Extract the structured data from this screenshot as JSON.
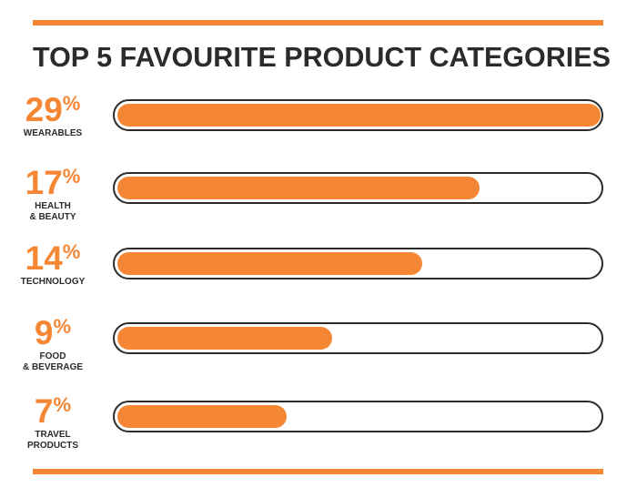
{
  "colors": {
    "accent": "#f58634",
    "text": "#2b2b2b",
    "track_border": "#2b2b2b"
  },
  "chart_data": {
    "type": "bar",
    "orientation": "horizontal",
    "title": "TOP 5 FAVOURITE PRODUCT CATEGORIES",
    "categories": [
      "WEARABLES",
      "HEALTH\n& BEAUTY",
      "TECHNOLOGY",
      "FOOD\n& BEVERAGE",
      "TRAVEL\nPRODUCTS"
    ],
    "values": [
      29,
      17,
      14,
      9,
      7
    ],
    "value_labels": [
      "29",
      "17",
      "14",
      "9",
      "7"
    ],
    "value_unit": "%",
    "progress_fractions": [
      1.0,
      0.75,
      0.63,
      0.445,
      0.35
    ]
  }
}
